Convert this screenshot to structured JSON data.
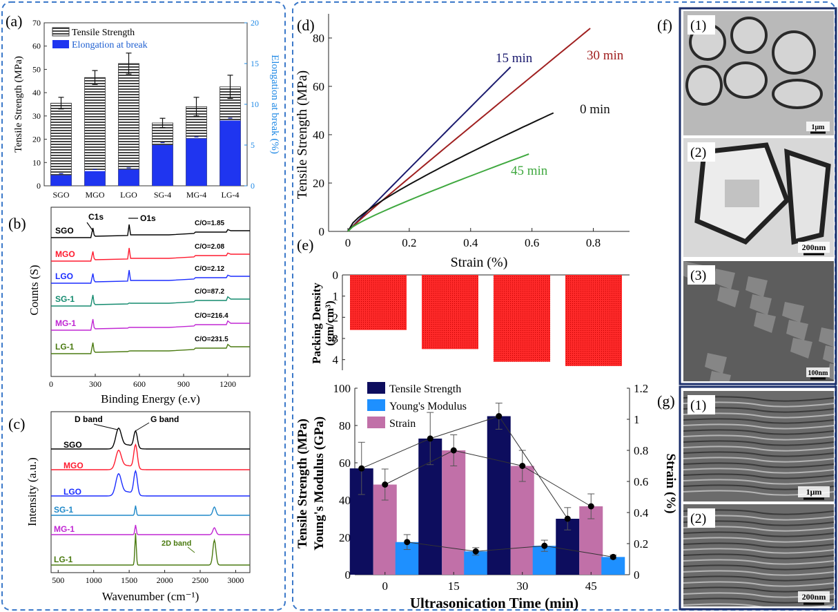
{
  "panels": {
    "a": {
      "label": "(a)"
    },
    "b": {
      "label": "(b)"
    },
    "c": {
      "label": "(c)"
    },
    "d": {
      "label": "(d)"
    },
    "e": {
      "label": "(e)"
    },
    "f": {
      "label": "(f)",
      "images": [
        {
          "label": "(1)",
          "scale": "1μm"
        },
        {
          "label": "(2)",
          "scale": "200nm"
        },
        {
          "label": "(3)",
          "scale": "100nm"
        }
      ]
    },
    "g": {
      "label": "(g)",
      "images": [
        {
          "label": "(1)",
          "scale": "1μm"
        },
        {
          "label": "(2)",
          "scale": "200nm"
        }
      ]
    }
  },
  "colors": {
    "frame_a": "#3a78c9",
    "frame_f": "#1c2f6b",
    "blue_bar": "#1f35f0",
    "navy": "#0d0d5e",
    "lightblue": "#1e90ff",
    "pink": "#c170a8",
    "red": "#ff1a1a"
  },
  "chart_data": [
    {
      "id": "a",
      "type": "bar",
      "categories": [
        "SGO",
        "MGO",
        "LGO",
        "SG-4",
        "MG-4",
        "LG-4"
      ],
      "ylabel": "Tensile Strength (MPa)",
      "ylim": [
        0,
        70
      ],
      "yticks": [
        "0",
        "10",
        "20",
        "30",
        "40",
        "50",
        "60",
        "70"
      ],
      "y2label": "Elongation at break (%)",
      "y2lim": [
        0,
        20
      ],
      "y2ticks": [
        "0",
        "5",
        "10",
        "15",
        "20"
      ],
      "series": [
        {
          "name": "Tensile Strength",
          "values": [
            35.5,
            46.5,
            52.5,
            27,
            34,
            42.5
          ],
          "errors": [
            2.5,
            3,
            4.5,
            2,
            4,
            5
          ]
        },
        {
          "name": "Elongation at break",
          "axis": "right",
          "values": [
            1.3,
            1.8,
            2.0,
            5.0,
            5.8,
            8.0
          ],
          "errors": [
            0.2,
            0.2,
            0.2,
            0.3,
            0.2,
            0.3
          ]
        }
      ]
    },
    {
      "id": "b",
      "type": "line",
      "xlabel": "Binding Energy (e.v)",
      "ylabel": "Counts (S)",
      "xlim": [
        0,
        1350
      ],
      "xticks": [
        "0",
        "300",
        "600",
        "900",
        "1200"
      ],
      "annotations": [
        "C1s",
        "O1s"
      ],
      "series": [
        {
          "name": "SGO",
          "ratio": "C/O=1.85",
          "color": "#000000"
        },
        {
          "name": "MGO",
          "ratio": "C/O=2.08",
          "color": "#ff1a2e"
        },
        {
          "name": "LGO",
          "ratio": "C/O=2.12",
          "color": "#1a2cff"
        },
        {
          "name": "SG-1",
          "ratio": "C/O=87.2",
          "color": "#138a6e"
        },
        {
          "name": "MG-1",
          "ratio": "C/O=216.4",
          "color": "#c026d3"
        },
        {
          "name": "LG-1",
          "ratio": "C/O=231.5",
          "color": "#4a7a10"
        }
      ]
    },
    {
      "id": "c",
      "type": "line",
      "xlabel": "Wavenumber (cm⁻¹)",
      "ylabel": "Intensity (a.u.)",
      "xlim": [
        400,
        3200
      ],
      "xticks": [
        "500",
        "1000",
        "1500",
        "2000",
        "2500",
        "3000"
      ],
      "annotations": [
        "D band",
        "G band",
        "2D band"
      ],
      "series": [
        {
          "name": "SGO",
          "color": "#000000"
        },
        {
          "name": "MGO",
          "color": "#ff1a2e"
        },
        {
          "name": "LGO",
          "color": "#1a2cff"
        },
        {
          "name": "SG-1",
          "color": "#1e88c8"
        },
        {
          "name": "MG-1",
          "color": "#c026d3"
        },
        {
          "name": "LG-1",
          "color": "#4a7a10"
        }
      ]
    },
    {
      "id": "d",
      "type": "line",
      "xlabel": "Strain (%)",
      "ylabel": "Tensile Strength (MPa)",
      "xlim": [
        0,
        0.9
      ],
      "xticks": [
        "0",
        "0.2",
        "0.4",
        "0.6",
        "0.8"
      ],
      "ylim": [
        0,
        90
      ],
      "yticks": [
        "0",
        "20",
        "40",
        "60",
        "80"
      ],
      "series": [
        {
          "name": "15 min",
          "color": "#1a1a6e",
          "end": [
            0.53,
            68
          ]
        },
        {
          "name": "30 min",
          "color": "#a02020",
          "end": [
            0.79,
            84
          ]
        },
        {
          "name": "0 min",
          "color": "#111111",
          "end": [
            0.67,
            49
          ]
        },
        {
          "name": "45 min",
          "color": "#3fa83f",
          "end": [
            0.59,
            32
          ]
        }
      ]
    },
    {
      "id": "e_top",
      "type": "bar",
      "categories": [
        "0",
        "15",
        "30",
        "45"
      ],
      "ylabel": "Packing Density (gm/cm³)",
      "ylim": [
        0,
        4.5
      ],
      "yticks": [
        "0",
        "1",
        "2",
        "3",
        "4"
      ],
      "inverted": true,
      "values": [
        2.6,
        3.5,
        4.1,
        4.3
      ]
    },
    {
      "id": "e_bottom",
      "type": "bar",
      "categories": [
        "0",
        "15",
        "30",
        "45"
      ],
      "xlabel": "Ultrasonication Time (min)",
      "ylabel": "Tensile Strength (MPa) Young's Modulus (GPa)",
      "ylim": [
        0,
        100
      ],
      "yticks": [
        "0",
        "20",
        "40",
        "60",
        "80",
        "100"
      ],
      "y2label": "Strain (%)",
      "y2lim": [
        0,
        1.2
      ],
      "y2ticks": [
        "0",
        "0.2",
        "0.4",
        "0.6",
        "0.8",
        "1",
        "1.2"
      ],
      "series": [
        {
          "name": "Tensile Strength",
          "values": [
            57,
            73,
            85,
            30
          ],
          "errors": [
            14,
            14,
            7,
            6
          ]
        },
        {
          "name": "Young's Modulus",
          "values": [
            17.5,
            12.5,
            15.5,
            9.5
          ],
          "errors": [
            4,
            2,
            3,
            1
          ]
        },
        {
          "name": "Strain",
          "axis": "right",
          "values": [
            0.58,
            0.8,
            0.7,
            0.44
          ],
          "errors": [
            0.1,
            0.1,
            0.1,
            0.08
          ]
        }
      ]
    }
  ]
}
